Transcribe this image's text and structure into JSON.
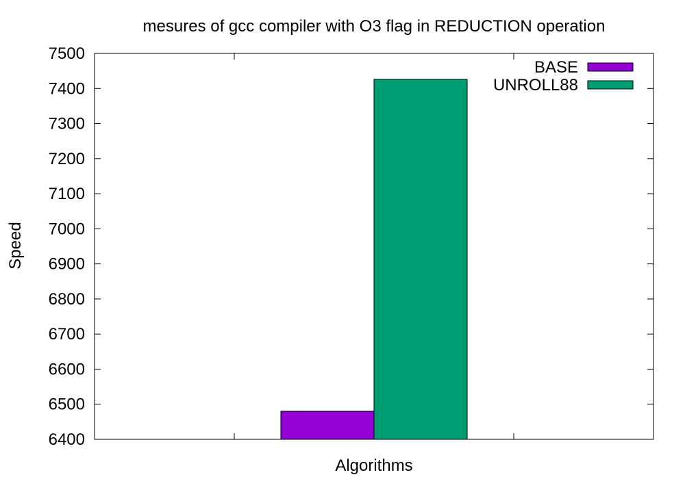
{
  "chart_data": {
    "type": "bar",
    "title": "mesures of gcc compiler with O3 flag in REDUCTION operation",
    "xlabel": "Algorithms",
    "ylabel": "Speed",
    "ylim": [
      6400,
      7500
    ],
    "yticks": [
      6400,
      6500,
      6600,
      6700,
      6800,
      6900,
      7000,
      7100,
      7200,
      7300,
      7400,
      7500
    ],
    "grid": false,
    "legend_position": "top-right",
    "series": [
      {
        "name": "BASE",
        "values": [
          6480
        ],
        "color": "#9400d3"
      },
      {
        "name": "UNROLL88",
        "values": [
          7426
        ],
        "color": "#009e73"
      }
    ]
  }
}
